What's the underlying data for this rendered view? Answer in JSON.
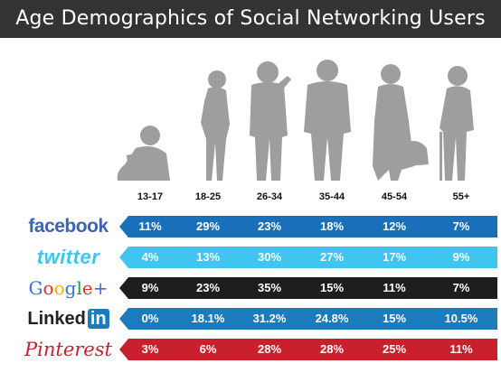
{
  "title": "Age Demographics of Social Networking Users",
  "chart_data": {
    "type": "table",
    "title": "Age Demographics of Social Networking Users",
    "columns": [
      "13-17",
      "18-25",
      "26-34",
      "35-44",
      "45-54",
      "55+"
    ],
    "rows": [
      {
        "name": "facebook",
        "color": "#1a6fba",
        "values": [
          "11%",
          "29%",
          "23%",
          "18%",
          "12%",
          "7%"
        ]
      },
      {
        "name": "twitter",
        "color": "#3fc5f0",
        "values": [
          "4%",
          "13%",
          "30%",
          "27%",
          "17%",
          "9%"
        ]
      },
      {
        "name": "Google+",
        "color": "#1e1e1e",
        "values": [
          "9%",
          "23%",
          "35%",
          "15%",
          "11%",
          "7%"
        ]
      },
      {
        "name": "Linked in",
        "color": "#1a7bbd",
        "values": [
          "0%",
          "18.1%",
          "31.2%",
          "24.8%",
          "15%",
          "10.5%"
        ]
      },
      {
        "name": "Pinterest",
        "color": "#c8202c",
        "values": [
          "3%",
          "6%",
          "28%",
          "28%",
          "25%",
          "11%"
        ]
      }
    ]
  },
  "logos": {
    "facebook": "facebook",
    "twitter": "twitter",
    "google": [
      "G",
      "o",
      "o",
      "g",
      "l",
      "e",
      "+"
    ],
    "linkedin_text": "Linked",
    "linkedin_box": "in",
    "pinterest": "Pinterest"
  },
  "colors": {
    "title_bar": "#333333",
    "silhouette": "#9e9e9e",
    "google_letters": [
      "#3a6fd8",
      "#d9352b",
      "#f1b400",
      "#3a6fd8",
      "#1d9a4a",
      "#d9352b",
      "#3a6fd8"
    ]
  }
}
